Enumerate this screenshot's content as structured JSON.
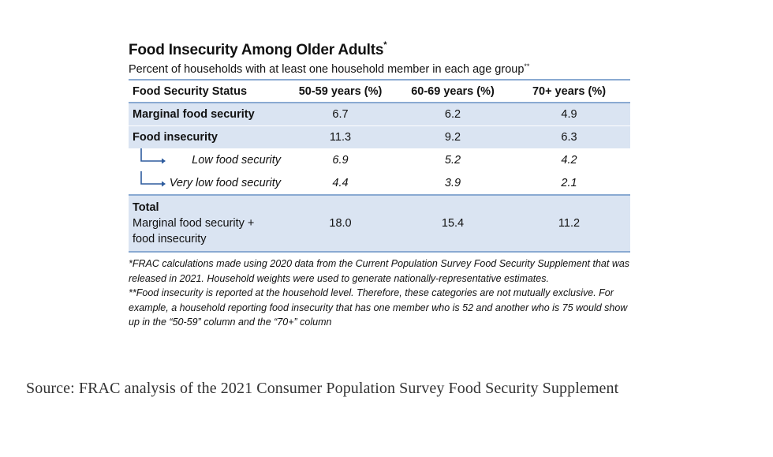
{
  "figure": {
    "title": "Food Insecurity Among Older Adults",
    "title_mark": "*",
    "subtitle": "Percent of households with at least one household member in each age group",
    "subtitle_mark": "**"
  },
  "chart_data": {
    "type": "table",
    "columns": [
      "Food Security Status",
      "50-59 years (%)",
      "60-69 years (%)",
      "70+ years (%)"
    ],
    "rows": [
      {
        "label": "Marginal food security",
        "values": [
          "6.7",
          "6.2",
          "4.9"
        ]
      },
      {
        "label": "Food insecurity",
        "values": [
          "11.3",
          "9.2",
          "6.3"
        ]
      },
      {
        "label": "Low food security",
        "values": [
          "6.9",
          "5.2",
          "4.2"
        ]
      },
      {
        "label": "Very low food security",
        "values": [
          "4.4",
          "3.9",
          "2.1"
        ]
      },
      {
        "label": "Total",
        "sublabel": "Marginal food security + food insecurity",
        "sublabel_line1": "Marginal food security +",
        "sublabel_line2": "food insecurity",
        "values": [
          "18.0",
          "15.4",
          "11.2"
        ]
      }
    ]
  },
  "footnotes": {
    "note1": "*FRAC calculations made using 2020 data from the Current Population Survey Food Security Supplement that was released in 2021. Household weights were used to generate nationally-representative estimates.",
    "note2": "**Food insecurity is reported at the household level. Therefore, these categories are not mutually exclusive. For example, a household reporting food insecurity that has one member who is 52 and another who is 75 would show up in the “50-59” column and the “70+” column"
  },
  "source": "Source: FRAC analysis of the 2021 Consumer Population Survey Food Security Supplement",
  "colors": {
    "row_shading": "#dae4f2",
    "rule": "#8aaad2",
    "arrow": "#2e5c9e"
  }
}
